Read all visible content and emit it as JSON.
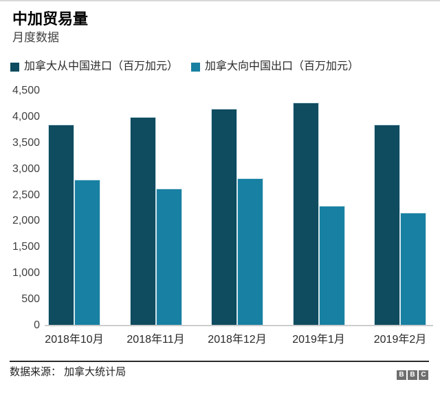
{
  "header": {
    "title": "中加贸易量",
    "subtitle": "月度数据"
  },
  "legend": [
    {
      "label": "加拿大从中国进口（百万加元）",
      "color": "#0f4c5f"
    },
    {
      "label": "加拿大向中国出口（百万加元）",
      "color": "#1880a2"
    }
  ],
  "chart_data": {
    "type": "bar",
    "title": "中加贸易量",
    "subtitle": "月度数据",
    "categories": [
      "2018年10月",
      "2018年11月",
      "2018年12月",
      "2019年1月",
      "2019年2月"
    ],
    "series": [
      {
        "name": "加拿大从中国进口（百万加元）",
        "color": "#0f4c5f",
        "values": [
          3860,
          4000,
          4160,
          4270,
          3850
        ]
      },
      {
        "name": "加拿大向中国出口（百万加元）",
        "color": "#1880a2",
        "values": [
          2800,
          2620,
          2820,
          2300,
          2160
        ]
      }
    ],
    "ylim": [
      0,
      4500
    ],
    "ytick_step": 500,
    "ytick_labels": [
      "0",
      "500",
      "1,000",
      "1,500",
      "2,000",
      "2,500",
      "3,000",
      "3,500",
      "4,000",
      "4,500"
    ],
    "grid": false,
    "legend_position": "top",
    "xlabel": "",
    "ylabel": ""
  },
  "footer": {
    "source": "数据来源： 加拿大统计局",
    "logo_letters": [
      "B",
      "B",
      "C"
    ]
  }
}
